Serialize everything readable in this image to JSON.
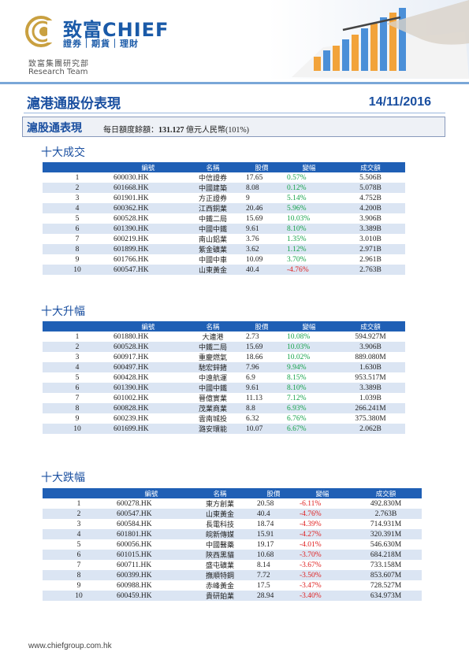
{
  "header": {
    "brand": "致富CHIEF",
    "brand_sub": "證券｜期貨｜理財",
    "dept_cn": "致富集團研究部",
    "dept_en": "Research Team",
    "report_title": "滬港通股份表現",
    "date": "14/11/2016"
  },
  "section": {
    "title": "滬股通表現",
    "quota_label": "每日額度餘額：",
    "quota_value": "131.127",
    "quota_unit": "億元人民幣(101%)"
  },
  "columns": [
    "編號",
    "名稱",
    "股價",
    "變幅",
    "成交額"
  ],
  "colors": {
    "header_bg": "#1f5fb5",
    "alt_row": "#dbe5f3",
    "up": "#16a34a",
    "down": "#e02020",
    "title": "#1a4fa0"
  },
  "tables": [
    {
      "title": "十大成交",
      "rows": [
        {
          "rank": "1",
          "code": "600030.HK",
          "name": "中信證券",
          "price": "17.65",
          "change": "0.57%",
          "turnover": "5.506B"
        },
        {
          "rank": "2",
          "code": "601668.HK",
          "name": "中國建築",
          "price": "8.08",
          "change": "0.12%",
          "turnover": "5.078B"
        },
        {
          "rank": "3",
          "code": "601901.HK",
          "name": "方正證券",
          "price": "9",
          "change": "5.14%",
          "turnover": "4.752B"
        },
        {
          "rank": "4",
          "code": "600362.HK",
          "name": "江西銅業",
          "price": "20.46",
          "change": "5.96%",
          "turnover": "4.200B"
        },
        {
          "rank": "5",
          "code": "600528.HK",
          "name": "中鐵二局",
          "price": "15.69",
          "change": "10.03%",
          "turnover": "3.906B"
        },
        {
          "rank": "6",
          "code": "601390.HK",
          "name": "中國中鐵",
          "price": "9.61",
          "change": "8.10%",
          "turnover": "3.389B"
        },
        {
          "rank": "7",
          "code": "600219.HK",
          "name": "南山鋁業",
          "price": "3.76",
          "change": "1.35%",
          "turnover": "3.010B"
        },
        {
          "rank": "8",
          "code": "601899.HK",
          "name": "紫金礦業",
          "price": "3.62",
          "change": "1.12%",
          "turnover": "2.971B"
        },
        {
          "rank": "9",
          "code": "601766.HK",
          "name": "中國中車",
          "price": "10.09",
          "change": "3.70%",
          "turnover": "2.961B"
        },
        {
          "rank": "10",
          "code": "600547.HK",
          "name": "山東黃金",
          "price": "40.4",
          "change": "-4.76%",
          "turnover": "2.763B"
        }
      ]
    },
    {
      "title": "十大升幅",
      "rows": [
        {
          "rank": "1",
          "code": "601880.HK",
          "name": "大連港",
          "price": "2.73",
          "change": "10.08%",
          "turnover": "594.927M"
        },
        {
          "rank": "2",
          "code": "600528.HK",
          "name": "中鐵二局",
          "price": "15.69",
          "change": "10.03%",
          "turnover": "3.906B"
        },
        {
          "rank": "3",
          "code": "600917.HK",
          "name": "重慶燃氣",
          "price": "18.66",
          "change": "10.02%",
          "turnover": "889.080M"
        },
        {
          "rank": "4",
          "code": "600497.HK",
          "name": "馳宏鋅鍺",
          "price": "7.96",
          "change": "9.94%",
          "turnover": "1.630B"
        },
        {
          "rank": "5",
          "code": "600428.HK",
          "name": "中遠航運",
          "price": "6.9",
          "change": "8.15%",
          "turnover": "953.517M"
        },
        {
          "rank": "6",
          "code": "601390.HK",
          "name": "中國中鐵",
          "price": "9.61",
          "change": "8.10%",
          "turnover": "3.389B"
        },
        {
          "rank": "7",
          "code": "601002.HK",
          "name": "晉億實業",
          "price": "11.13",
          "change": "7.12%",
          "turnover": "1.039B"
        },
        {
          "rank": "8",
          "code": "600828.HK",
          "name": "茂業商業",
          "price": "8.8",
          "change": "6.93%",
          "turnover": "266.241M"
        },
        {
          "rank": "9",
          "code": "600239.HK",
          "name": "雲南城投",
          "price": "6.32",
          "change": "6.76%",
          "turnover": "375.380M"
        },
        {
          "rank": "10",
          "code": "601699.HK",
          "name": "潞安環能",
          "price": "10.07",
          "change": "6.67%",
          "turnover": "2.062B"
        }
      ]
    },
    {
      "title": "十大跌幅",
      "rows": [
        {
          "rank": "1",
          "code": "600278.HK",
          "name": "東方創業",
          "price": "20.58",
          "change": "-6.11%",
          "turnover": "492.830M"
        },
        {
          "rank": "2",
          "code": "600547.HK",
          "name": "山東黃金",
          "price": "40.4",
          "change": "-4.76%",
          "turnover": "2.763B"
        },
        {
          "rank": "3",
          "code": "600584.HK",
          "name": "長電科技",
          "price": "18.74",
          "change": "-4.39%",
          "turnover": "714.931M"
        },
        {
          "rank": "4",
          "code": "601801.HK",
          "name": "皖新傳媒",
          "price": "15.91",
          "change": "-4.27%",
          "turnover": "320.391M"
        },
        {
          "rank": "5",
          "code": "600056.HK",
          "name": "中國醫藥",
          "price": "19.17",
          "change": "-4.01%",
          "turnover": "546.630M"
        },
        {
          "rank": "6",
          "code": "601015.HK",
          "name": "陝西黑貓",
          "price": "10.68",
          "change": "-3.70%",
          "turnover": "684.218M"
        },
        {
          "rank": "7",
          "code": "600711.HK",
          "name": "盛屯礦業",
          "price": "8.14",
          "change": "-3.67%",
          "turnover": "733.158M"
        },
        {
          "rank": "8",
          "code": "600399.HK",
          "name": "撫順特鋼",
          "price": "7.72",
          "change": "-3.50%",
          "turnover": "853.607M"
        },
        {
          "rank": "9",
          "code": "600988.HK",
          "name": "赤峰黃金",
          "price": "17.5",
          "change": "-3.47%",
          "turnover": "728.527M"
        },
        {
          "rank": "10",
          "code": "600459.HK",
          "name": "貴研鉑業",
          "price": "28.94",
          "change": "-3.40%",
          "turnover": "634.973M"
        }
      ]
    }
  ],
  "footer": {
    "url": "www.chiefgroup.com.hk"
  }
}
